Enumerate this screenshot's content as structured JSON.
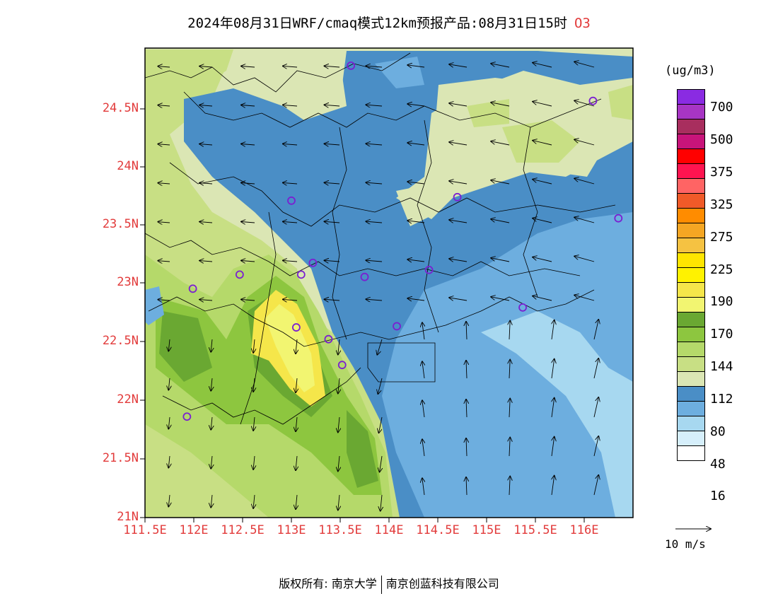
{
  "title": {
    "main": "2024年08月31日WRF/cmaq模式12km预报产品:08月31日15时",
    "species": "O3"
  },
  "unit_label": "(ug/m3)",
  "legend": {
    "labels": [
      "700",
      "500",
      "375",
      "325",
      "275",
      "225",
      "190",
      "170",
      "144",
      "112",
      "80",
      "48",
      "16"
    ],
    "colors": [
      "#8a2be2",
      "#a735c4",
      "#a82e5e",
      "#c8147a",
      "#ff0000",
      "#ff1450",
      "#ff6464",
      "#f05a28",
      "#ff8c00",
      "#f5a623",
      "#f5c242",
      "#ffe500",
      "#fff200",
      "#f5e64a",
      "#f2f571",
      "#6aa832",
      "#8dc63f",
      "#b5d96a",
      "#c8df84",
      "#dbe6b4",
      "#4a8ec6",
      "#6daedf",
      "#a7d8f0",
      "#d6effb",
      "#ffffff"
    ]
  },
  "wind_reference": "10 m/s",
  "latitude_labels": [
    "24.5N",
    "24N",
    "23.5N",
    "23N",
    "22.5N",
    "22N",
    "21.5N",
    "21N"
  ],
  "longitude_labels": [
    "111.5E",
    "112E",
    "112.5E",
    "113E",
    "113.5E",
    "114E",
    "114.5E",
    "115E",
    "115.5E",
    "116E"
  ],
  "footer": {
    "left": "版权所有: 南京大学",
    "right": "南京创蓝科技有限公司"
  },
  "stations": [
    {
      "lon": 113.61,
      "lat": 24.85
    },
    {
      "lon": 116.09,
      "lat": 24.55
    },
    {
      "lon": 113.0,
      "lat": 23.7
    },
    {
      "lon": 114.7,
      "lat": 23.73
    },
    {
      "lon": 116.35,
      "lat": 23.55
    },
    {
      "lon": 112.47,
      "lat": 23.07
    },
    {
      "lon": 113.22,
      "lat": 23.17
    },
    {
      "lon": 113.1,
      "lat": 23.07
    },
    {
      "lon": 113.75,
      "lat": 23.05
    },
    {
      "lon": 114.41,
      "lat": 23.11
    },
    {
      "lon": 111.99,
      "lat": 22.95
    },
    {
      "lon": 115.37,
      "lat": 22.79
    },
    {
      "lon": 113.05,
      "lat": 22.62
    },
    {
      "lon": 114.08,
      "lat": 22.63
    },
    {
      "lon": 113.38,
      "lat": 22.52
    },
    {
      "lon": 113.52,
      "lat": 22.3
    },
    {
      "lon": 111.93,
      "lat": 21.86
    }
  ]
}
